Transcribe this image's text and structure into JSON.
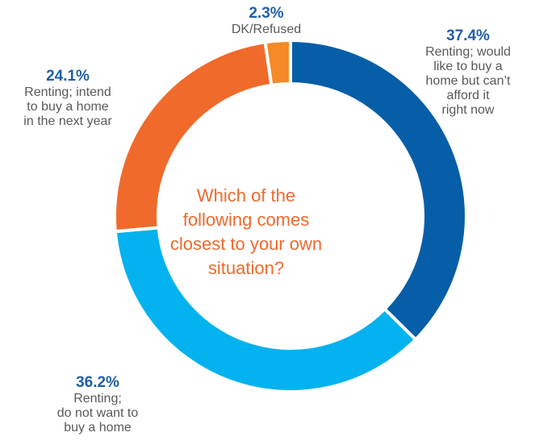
{
  "chart_data": {
    "type": "pie",
    "donut": true,
    "center_text": "Which of the following comes closest to your own situation?",
    "slices": [
      {
        "label": "Renting; would like to buy a home but can’t afford it right now",
        "value": 37.4,
        "value_label": "37.4%",
        "color": "#065ea8"
      },
      {
        "label": "Renting; do not want to buy a home",
        "value": 36.2,
        "value_label": "36.2%",
        "color": "#03b2ee"
      },
      {
        "label": "Renting; intend to buy a home in the next year",
        "value": 24.1,
        "value_label": "24.1%",
        "color": "#f06a2b"
      },
      {
        "label": "DK/Refused",
        "value": 2.3,
        "value_label": "2.3%",
        "color": "#f58a26"
      }
    ],
    "display_labels": [
      "Renting; would\nlike to buy a\nhome but can’t\nafford it\nright now",
      "Renting;\ndo not want to\nbuy a home",
      "Renting; intend\nto buy a home\nin the next year",
      "DK/Refused"
    ]
  }
}
